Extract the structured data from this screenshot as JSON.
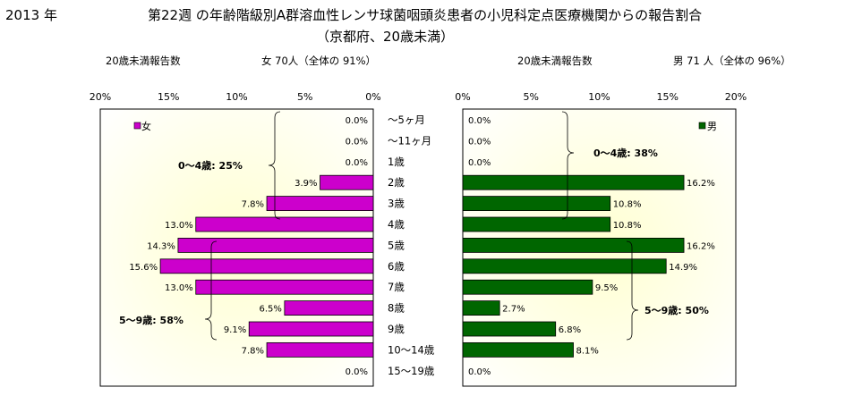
{
  "title": {
    "year": "2013 年",
    "main": "第22週 の年齢階級別A群溶血性レンサ球菌咽頭炎患者の小児科定点医療機関からの報告割合",
    "sub": "（京都府、20歳未満）"
  },
  "left_header": {
    "label": "20歳未満報告数",
    "summary": "女  70人（全体の  91%）"
  },
  "right_header": {
    "label": "20歳未満報告数",
    "summary": "男   71 人（全体の  96%）"
  },
  "colors": {
    "female": "#CC00CC",
    "male": "#006600",
    "plot_bg_center": "#FFFFD9",
    "plot_bg_edge": "#FFFFFF"
  },
  "chart_data": {
    "type": "bar",
    "categories": [
      "～5ヶ月",
      "～11ヶ月",
      "1歳",
      "2歳",
      "3歳",
      "4歳",
      "5歳",
      "6歳",
      "7歳",
      "8歳",
      "9歳",
      "10～14歳",
      "15～19歳"
    ],
    "xlim": [
      0,
      20
    ],
    "ticks": [
      "20%",
      "15%",
      "10%",
      "5%",
      "0%"
    ],
    "ticks_right": [
      "0%",
      "5%",
      "10%",
      "15%",
      "20%"
    ],
    "series": [
      {
        "name": "女",
        "values": [
          0.0,
          0.0,
          0.0,
          3.9,
          7.8,
          13.0,
          14.3,
          15.6,
          13.0,
          6.5,
          9.1,
          7.8,
          0.0
        ],
        "labels": [
          "0.0%",
          "0.0%",
          "0.0%",
          "3.9%",
          "7.8%",
          "13.0%",
          "14.3%",
          "15.6%",
          "13.0%",
          "6.5%",
          "9.1%",
          "7.8%",
          "0.0%"
        ]
      },
      {
        "name": "男",
        "values": [
          0.0,
          0.0,
          0.0,
          16.2,
          10.8,
          10.8,
          16.2,
          14.9,
          9.5,
          2.7,
          6.8,
          8.1,
          0.0
        ],
        "labels": [
          "0.0%",
          "0.0%",
          "0.0%",
          "16.2%",
          "10.8%",
          "10.8%",
          "16.2%",
          "14.9%",
          "9.5%",
          "2.7%",
          "6.8%",
          "8.1%",
          "0.0%"
        ]
      }
    ],
    "annotations": {
      "female_0_4": "0～4歳: 25%",
      "female_5_9": "5～9歳: 58%",
      "male_0_4": "0～4歳: 38%",
      "male_5_9": "5～9歳: 50%"
    },
    "legend_placement": "top-left (女), top-right (男)"
  }
}
